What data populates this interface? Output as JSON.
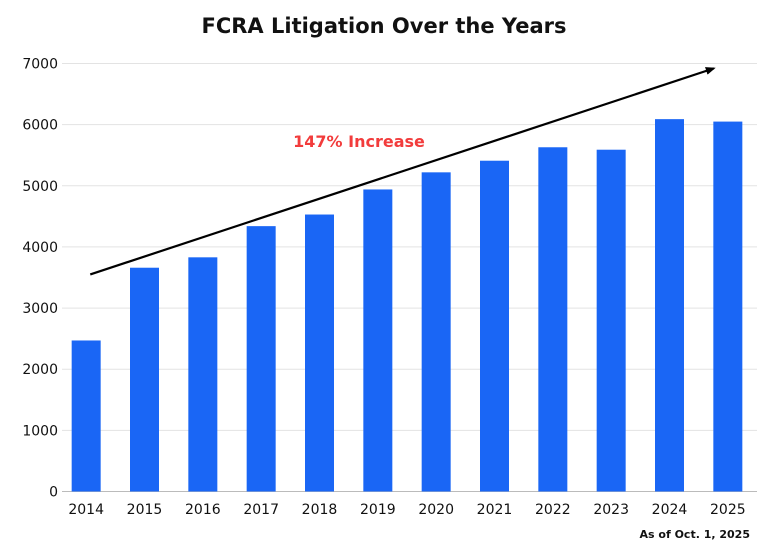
{
  "chart_data": {
    "type": "bar",
    "title": "FCRA Litigation Over the Years",
    "categories": [
      "2014",
      "2015",
      "2016",
      "2017",
      "2018",
      "2019",
      "2020",
      "2021",
      "2022",
      "2023",
      "2024",
      "2025"
    ],
    "values": [
      2470,
      3660,
      3830,
      4340,
      4530,
      4940,
      5220,
      5410,
      5630,
      5590,
      6090,
      6050
    ],
    "xlabel": "",
    "ylabel": "",
    "ylim": [
      0,
      7000
    ],
    "yticks": [
      0,
      1000,
      2000,
      3000,
      4000,
      5000,
      6000,
      7000
    ],
    "grid": true,
    "bar_color": "#1a66f5",
    "annotations": {
      "trend_arrow": {
        "from": {
          "category_index": 0.07,
          "value": 3550
        },
        "to": {
          "category_index": 10.76,
          "value": 6920
        },
        "color": "#000000"
      },
      "increase_label": {
        "text": "147% Increase",
        "color": "#f23c3c"
      }
    },
    "footnote": "As of Oct. 1, 2025"
  }
}
